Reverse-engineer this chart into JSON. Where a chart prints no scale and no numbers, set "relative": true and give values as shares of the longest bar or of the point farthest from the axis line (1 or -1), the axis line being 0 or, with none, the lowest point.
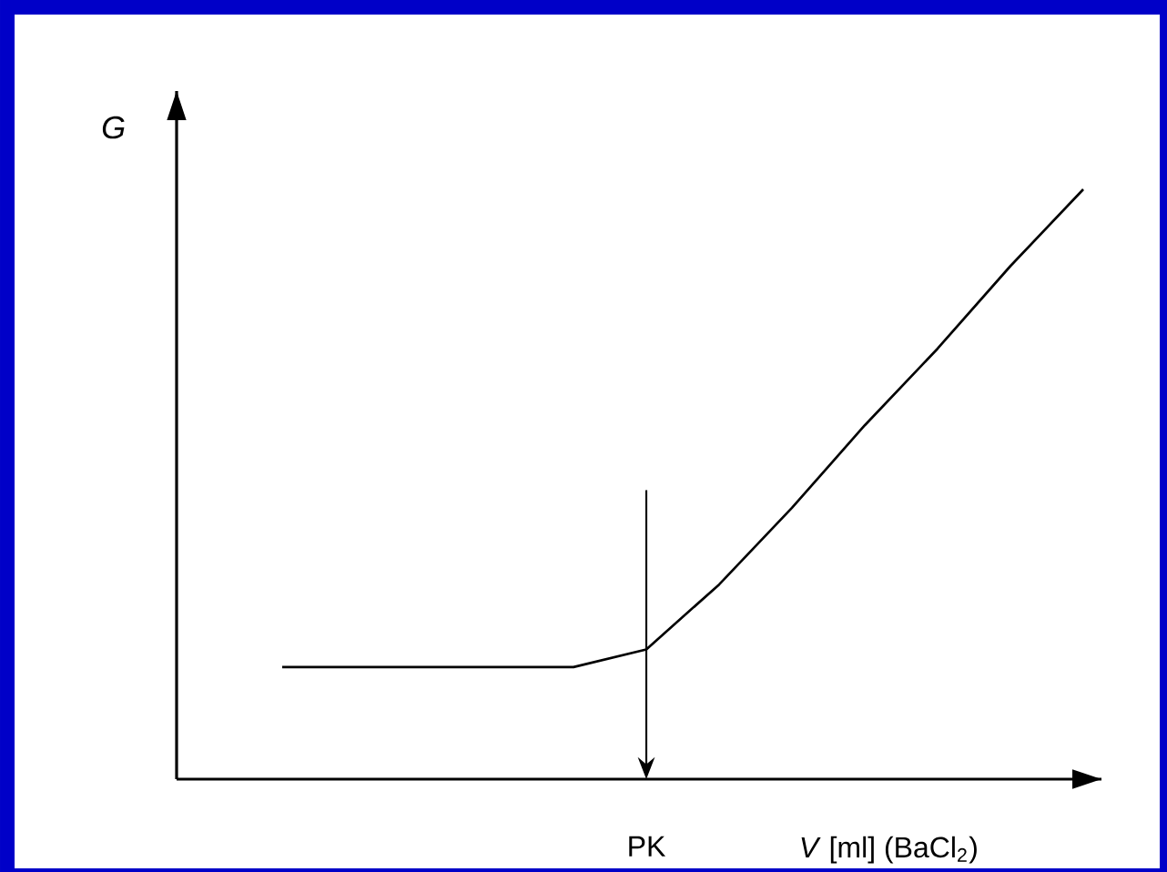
{
  "chart_data": {
    "type": "line",
    "xlabel": "*V* [ml] (BaCl$_{2}$)",
    "ylabel": "G",
    "categories": [
      null,
      null,
      null,
      null,
      null,
      null,
      null,
      null,
      null,
      null,
      null,
      null
    ],
    "values": [
      0.19,
      0.19,
      0.19,
      0.19,
      0.19,
      0.22,
      0.33,
      0.46,
      0.6,
      0.73,
      0.87,
      1
    ],
    "color": "#000000",
    "marker": "none",
    "line_style": "solid",
    "relative": true,
    "annotations": [
      "PK"
    ]
  }
}
